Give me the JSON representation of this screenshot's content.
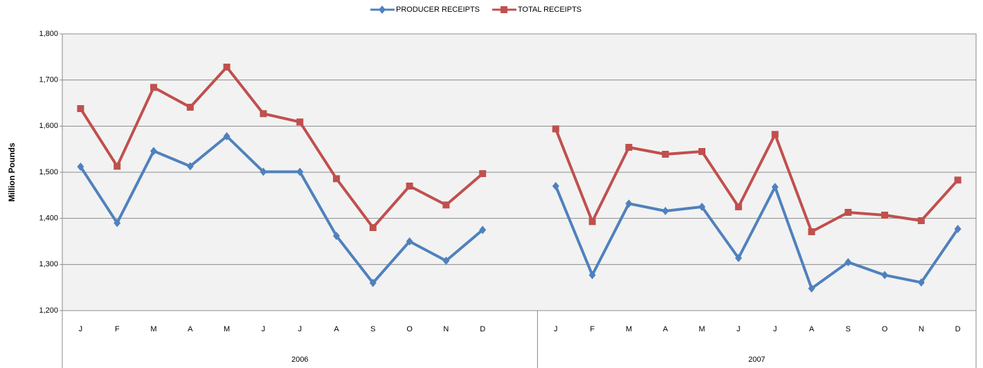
{
  "chart_data": {
    "type": "line",
    "ylabel": "Million Pounds",
    "groups": [
      {
        "name": "2006",
        "categories": [
          "J",
          "F",
          "M",
          "A",
          "M",
          "J",
          "J",
          "A",
          "S",
          "O",
          "N",
          "D",
          null
        ]
      },
      {
        "name": "2007",
        "categories": [
          "J",
          "F",
          "M",
          "A",
          "M",
          "J",
          "J",
          "A",
          "S",
          "O",
          "N",
          "D"
        ]
      }
    ],
    "series": [
      {
        "name": "PRODUCER RECEIPTS",
        "color": "#4f81bd",
        "marker": "diamond",
        "values": [
          1512,
          1390,
          1546,
          1513,
          1578,
          1501,
          1501,
          1362,
          1260,
          1350,
          1308,
          1375,
          null,
          1470,
          1277,
          1432,
          1416,
          1425,
          1314,
          1468,
          1248,
          1305,
          1277,
          1261,
          1377
        ]
      },
      {
        "name": "TOTAL RECEIPTS",
        "color": "#c0504d",
        "marker": "square",
        "values": [
          1638,
          1513,
          1684,
          1641,
          1728,
          1627,
          1609,
          1486,
          1380,
          1470,
          1429,
          1497,
          null,
          1594,
          1393,
          1554,
          1539,
          1545,
          1425,
          1582,
          1371,
          1413,
          1407,
          1395,
          1483
        ]
      }
    ],
    "ylim": [
      1200,
      1800
    ],
    "yticks": [
      {
        "value": 1200,
        "label": "1,200"
      },
      {
        "value": 1300,
        "label": "1,300"
      },
      {
        "value": 1400,
        "label": "1,400"
      },
      {
        "value": 1500,
        "label": "1,500"
      },
      {
        "value": 1600,
        "label": "1,600"
      },
      {
        "value": 1700,
        "label": "1,700"
      },
      {
        "value": 1800,
        "label": "1,800"
      }
    ],
    "grid": true,
    "legend": "top"
  }
}
